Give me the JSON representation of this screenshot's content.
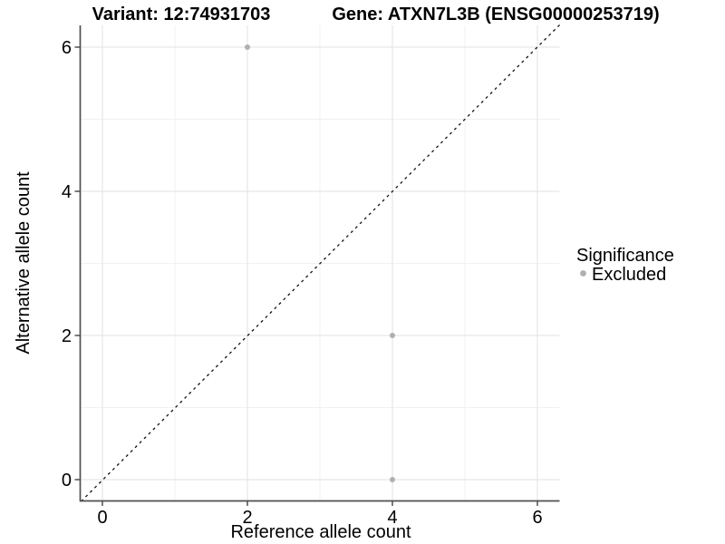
{
  "chart_data": {
    "type": "scatter",
    "titles": {
      "left": "Variant: 12:74931703",
      "right": "Gene: ATXN7L3B (ENSG00000253719)"
    },
    "xlabel": "Reference allele count",
    "ylabel": "Alternative allele count",
    "x_ticks": [
      0,
      2,
      4,
      6
    ],
    "y_ticks": [
      0,
      2,
      4,
      6
    ],
    "x_minor_ticks": [
      1,
      3,
      5
    ],
    "y_minor_ticks": [
      1,
      3,
      5
    ],
    "xlim": [
      -0.31,
      6.31
    ],
    "ylim": [
      -0.3,
      6.3
    ],
    "grid": true,
    "identity_line": {
      "type": "dashed",
      "equation": "y = x",
      "color": "#111111"
    },
    "legend": {
      "position": "right",
      "title": "Significance",
      "items": [
        {
          "label": "Excluded",
          "color": "#b0b0b0"
        }
      ]
    },
    "points": [
      {
        "x": 2,
        "y": 6,
        "series": "Excluded"
      },
      {
        "x": 4,
        "y": 2,
        "series": "Excluded"
      },
      {
        "x": 4,
        "y": 0,
        "series": "Excluded"
      }
    ]
  },
  "colors": {
    "background": "#ffffff",
    "axis_line": "#4f4f4f",
    "grid_major": "#e7e7e7",
    "grid_minor": "#f1f1f1",
    "point": "#b0b0b0",
    "dashed_line": "#111111",
    "tick_text": "#1a1a1a",
    "text": "#000000"
  }
}
